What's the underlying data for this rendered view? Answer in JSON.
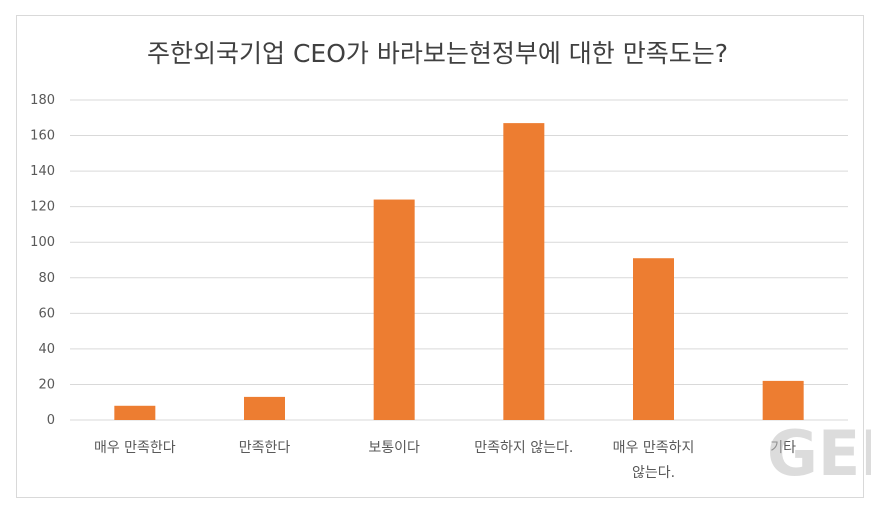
{
  "chart_data": {
    "type": "bar",
    "title": "주한외국기업 CEO가 바라보는현정부에 대한  만족도는?",
    "categories": [
      [
        "매우 만족한다"
      ],
      [
        "만족한다"
      ],
      [
        "보통이다"
      ],
      [
        "만족하지 않는다."
      ],
      [
        "매우 만족하지",
        "않는다."
      ],
      [
        "기타"
      ]
    ],
    "values": [
      8,
      13,
      124,
      167,
      91,
      22
    ],
    "ylim": [
      0,
      180
    ],
    "yticks": [
      0,
      20,
      40,
      60,
      80,
      100,
      120,
      140,
      160,
      180
    ],
    "grid": true,
    "bar_color": "#ed7d31",
    "grid_color": "#d9d9d9",
    "xlabel": "",
    "ylabel": ""
  },
  "watermark": {
    "text": "GEN"
  }
}
